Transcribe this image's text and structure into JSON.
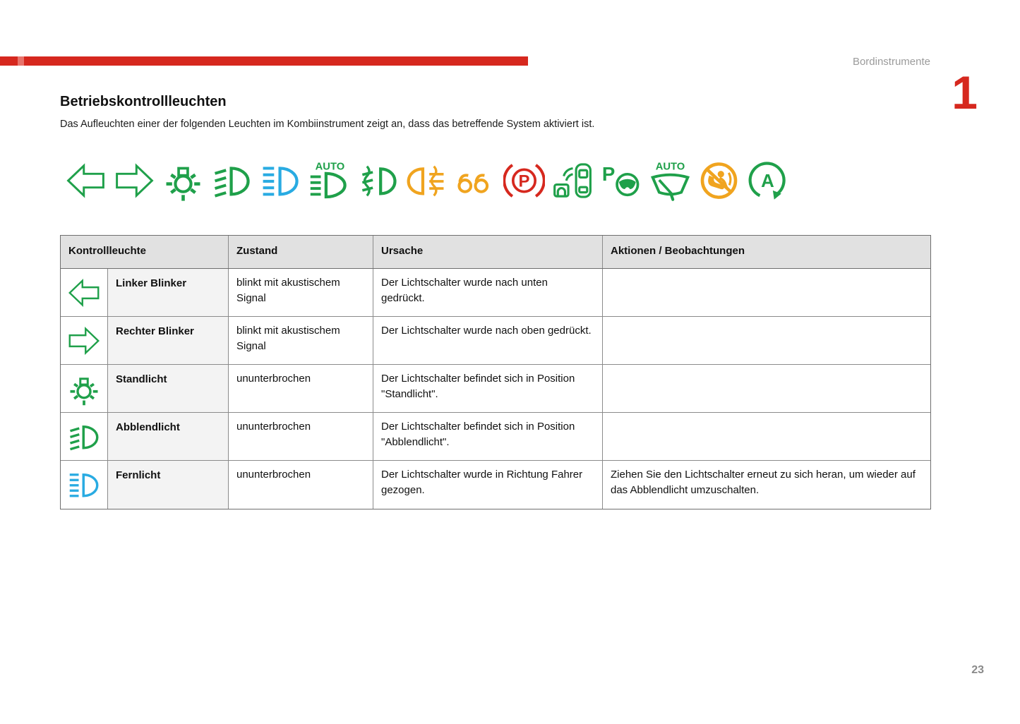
{
  "page": {
    "header_label": "Bordinstrumente",
    "chapter_number": "1",
    "page_number": "23"
  },
  "content": {
    "title": "Betriebskontrollleuchten",
    "intro": "Das Aufleuchten einer der folgenden Leuchten im Kombiinstrument zeigt an, dass das betreffende System aktiviert ist."
  },
  "colors": {
    "green": "#1fa04a",
    "blue": "#29abe2",
    "amber": "#f0a41f",
    "red": "#d6281e",
    "accent_red": "#d6281e"
  },
  "indicator_strip": [
    {
      "name": "left-turn-indicator-icon",
      "symbol": "arrow-left",
      "color": "green"
    },
    {
      "name": "right-turn-indicator-icon",
      "symbol": "arrow-right",
      "color": "green"
    },
    {
      "name": "parking-light-icon",
      "symbol": "parking-light",
      "color": "green"
    },
    {
      "name": "low-beam-icon",
      "symbol": "low-beam",
      "color": "green"
    },
    {
      "name": "high-beam-icon",
      "symbol": "high-beam",
      "color": "blue"
    },
    {
      "name": "auto-headlight-icon",
      "symbol": "auto-headlight",
      "color": "green"
    },
    {
      "name": "front-fog-light-icon",
      "symbol": "front-fog",
      "color": "green"
    },
    {
      "name": "rear-fog-light-icon",
      "symbol": "rear-fog",
      "color": "amber"
    },
    {
      "name": "glow-plug-icon",
      "symbol": "glow-plug",
      "color": "amber"
    },
    {
      "name": "parking-brake-icon",
      "symbol": "parking-brake",
      "color": "red"
    },
    {
      "name": "park-assist-icon",
      "symbol": "park-assist",
      "color": "green"
    },
    {
      "name": "park-steering-assist-icon",
      "symbol": "park-steering",
      "color": "green"
    },
    {
      "name": "auto-wiper-icon",
      "symbol": "auto-wiper",
      "color": "green"
    },
    {
      "name": "passenger-airbag-off-icon",
      "symbol": "airbag-off",
      "color": "amber"
    },
    {
      "name": "stop-start-icon",
      "symbol": "stop-start",
      "color": "green"
    }
  ],
  "table": {
    "headers": [
      "Kontrollleuchte",
      "Zustand",
      "Ursache",
      "Aktionen / Beobachtungen"
    ],
    "rows": [
      {
        "icon": "arrow-left",
        "icon_name": "left-turn-indicator-icon",
        "icon_color": "green",
        "label": "Linker Blinker",
        "zustand": "blinkt mit akustischem Signal",
        "ursache": "Der Lichtschalter wurde nach unten gedrückt.",
        "aktionen": ""
      },
      {
        "icon": "arrow-right",
        "icon_name": "right-turn-indicator-icon",
        "icon_color": "green",
        "label": "Rechter Blinker",
        "zustand": "blinkt mit akustischem Signal",
        "ursache": "Der Lichtschalter wurde nach oben gedrückt.",
        "aktionen": ""
      },
      {
        "icon": "parking-light",
        "icon_name": "parking-light-icon",
        "icon_color": "green",
        "label": "Standlicht",
        "zustand": "ununterbrochen",
        "ursache": "Der Lichtschalter befindet sich in Position \"Standlicht\".",
        "aktionen": ""
      },
      {
        "icon": "low-beam",
        "icon_name": "low-beam-icon",
        "icon_color": "green",
        "label": "Abblendlicht",
        "zustand": "ununterbrochen",
        "ursache": "Der Lichtschalter befindet sich in Position \"Abblendlicht\".",
        "aktionen": ""
      },
      {
        "icon": "high-beam",
        "icon_name": "high-beam-icon",
        "icon_color": "blue",
        "label": "Fernlicht",
        "zustand": "ununterbrochen",
        "ursache": "Der Lichtschalter wurde in Richtung Fahrer gezogen.",
        "aktionen": "Ziehen Sie den Lichtschalter erneut zu sich heran, um wieder auf das Abblendlicht umzuschalten."
      }
    ]
  }
}
